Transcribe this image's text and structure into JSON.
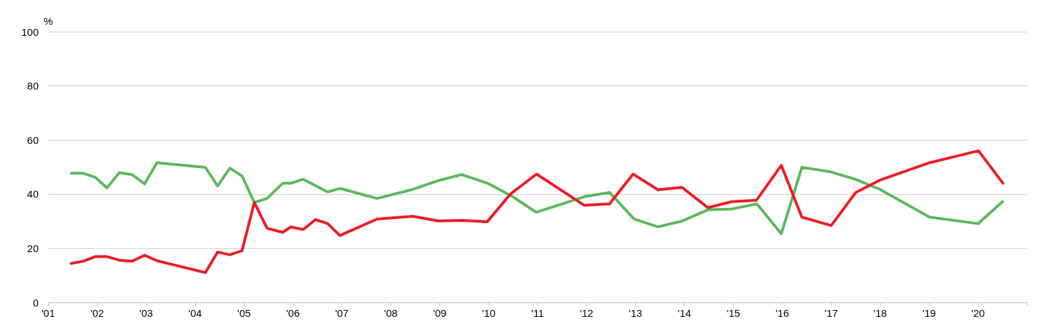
{
  "chart_data": {
    "type": "line",
    "ylabel": "%",
    "xlim": [
      2001,
      2021
    ],
    "xticks": [
      {
        "value": 2001,
        "label": "'01"
      },
      {
        "value": 2002,
        "label": "'02"
      },
      {
        "value": 2003,
        "label": "'03"
      },
      {
        "value": 2004,
        "label": "'04"
      },
      {
        "value": 2005,
        "label": "'05"
      },
      {
        "value": 2006,
        "label": "'06"
      },
      {
        "value": 2007,
        "label": "'07"
      },
      {
        "value": 2008,
        "label": "'08"
      },
      {
        "value": 2009,
        "label": "'09"
      },
      {
        "value": 2010,
        "label": "'10"
      },
      {
        "value": 2011,
        "label": "'11"
      },
      {
        "value": 2012,
        "label": "'12"
      },
      {
        "value": 2013,
        "label": "'13"
      },
      {
        "value": 2014,
        "label": "'14"
      },
      {
        "value": 2015,
        "label": "'15"
      },
      {
        "value": 2016,
        "label": "'16"
      },
      {
        "value": 2017,
        "label": "'17"
      },
      {
        "value": 2018,
        "label": "'18"
      },
      {
        "value": 2019,
        "label": "'19"
      },
      {
        "value": 2020,
        "label": "'20"
      },
      {
        "value": 2021,
        "label": null
      }
    ],
    "ylim": [
      0,
      100
    ],
    "yticks": [
      0,
      20,
      40,
      60,
      80,
      100
    ],
    "grid": "y",
    "marker": "none",
    "line_style": "solid",
    "series": [
      {
        "color": "#5cb85c",
        "x": [
          2001.47,
          2001.71,
          2001.96,
          2002.2,
          2002.45,
          2002.71,
          2002.97,
          2003.22,
          2004.21,
          2004.46,
          2004.71,
          2004.96,
          2005.21,
          2005.47,
          2005.79,
          2005.96,
          2006.21,
          2006.71,
          2006.96,
          2007.72,
          2008.46,
          2008.97,
          2009.45,
          2009.98,
          2010.46,
          2010.97,
          2011.97,
          2012.47,
          2012.97,
          2013.46,
          2013.96,
          2014.48,
          2014.97,
          2015.48,
          2015.98,
          2016.4,
          2016.99,
          2017.49,
          2017.99,
          2019.01,
          2020.0,
          2020.5
        ],
        "values": [
          47.7,
          47.7,
          46.2,
          42.3,
          47.9,
          47.2,
          43.8,
          51.6,
          49.9,
          43.0,
          49.6,
          46.7,
          36.9,
          38.4,
          44.0,
          44.0,
          45.5,
          40.8,
          42.1,
          38.4,
          41.8,
          45.0,
          47.2,
          44.0,
          39.4,
          33.3,
          39.1,
          40.6,
          30.8,
          27.9,
          30.1,
          34.2,
          34.5,
          36.4,
          25.4,
          49.9,
          48.2,
          45.5,
          41.8,
          31.5,
          29.1,
          37.2
        ]
      },
      {
        "color": "#ed1c24",
        "x": [
          2001.47,
          2001.71,
          2001.96,
          2002.2,
          2002.45,
          2002.71,
          2002.97,
          2003.22,
          2004.21,
          2004.46,
          2004.71,
          2004.96,
          2005.21,
          2005.47,
          2005.79,
          2005.96,
          2006.21,
          2006.46,
          2006.71,
          2006.96,
          2007.72,
          2008.45,
          2008.97,
          2009.48,
          2009.97,
          2010.45,
          2010.98,
          2011.95,
          2012.47,
          2012.95,
          2013.46,
          2013.95,
          2014.48,
          2014.97,
          2015.47,
          2015.98,
          2016.4,
          2017.0,
          2017.5,
          2018.0,
          2019.01,
          2020.01,
          2020.51
        ],
        "values": [
          14.4,
          15.2,
          16.9,
          16.9,
          15.6,
          15.2,
          17.4,
          15.4,
          11.0,
          18.6,
          17.6,
          19.1,
          36.9,
          27.4,
          25.9,
          27.9,
          26.9,
          30.6,
          29.1,
          24.7,
          30.8,
          31.8,
          30.1,
          30.3,
          29.8,
          40.1,
          47.4,
          35.9,
          36.4,
          47.4,
          41.6,
          42.5,
          35.0,
          37.2,
          37.7,
          50.6,
          31.5,
          28.4,
          40.6,
          45.2,
          51.6,
          56.0,
          44.0
        ]
      }
    ]
  }
}
